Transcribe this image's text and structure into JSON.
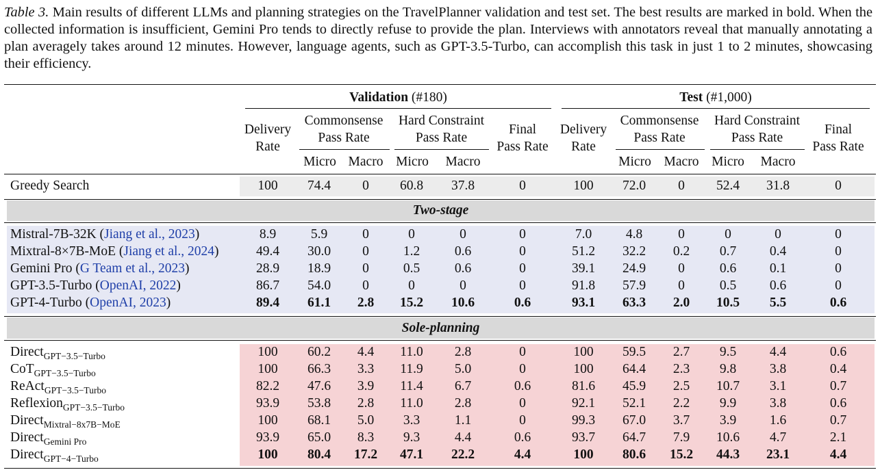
{
  "caption": {
    "label": "Table 3.",
    "text": " Main results of different LLMs and planning strategies on the TravelPlanner validation and test set. The best results are marked in bold. When the collected information is insufficient, Gemini Pro tends to directly refuse to provide the plan. Interviews with annotators reveal that manually annotating a plan averagely takes around 12 minutes. However, language agents, such as GPT-3.5-Turbo, can accomplish this task in just 1 to 2 minutes, showcasing their efficiency."
  },
  "header": {
    "validation": {
      "bold": "Validation",
      "rest": " (#180)"
    },
    "test": {
      "bold": "Test",
      "rest": " (#1,000)"
    },
    "delivery": [
      "Delivery",
      "Rate"
    ],
    "commonsense": [
      "Commonsense",
      "Pass Rate"
    ],
    "hard": [
      "Hard Constraint",
      "Pass Rate"
    ],
    "final": [
      "Final",
      "Pass Rate"
    ],
    "micro": "Micro",
    "macro": "Macro"
  },
  "colors": {
    "greedy_bg": "#ececec",
    "two_stage_bg": "#e6e8f4",
    "sole_bg": "#f6d3d5",
    "section_bg": "#d9d9d9",
    "citation": "#1f3fa8"
  },
  "sections": {
    "two_stage": "Two-stage",
    "sole_planning": "Sole-planning"
  },
  "rows": {
    "greedy": {
      "name": "Greedy Search",
      "values": [
        "100",
        "74.4",
        "0",
        "60.8",
        "37.8",
        "0",
        "100",
        "72.0",
        "0",
        "52.4",
        "31.8",
        "0"
      ]
    },
    "two_stage": [
      {
        "name": "Mistral-7B-32K (",
        "cite": "Jiang et al., 2023",
        "close": ")",
        "values": [
          "8.9",
          "5.9",
          "0",
          "0",
          "0",
          "0",
          "7.0",
          "4.8",
          "0",
          "0",
          "0",
          "0"
        ]
      },
      {
        "name": "Mixtral-8×7B-MoE (",
        "cite": "Jiang et al., 2024",
        "close": ")",
        "values": [
          "49.4",
          "30.0",
          "0",
          "1.2",
          "0.6",
          "0",
          "51.2",
          "32.2",
          "0.2",
          "0.7",
          "0.4",
          "0"
        ]
      },
      {
        "name": "Gemini Pro (",
        "cite": "G Team et al., 2023",
        "close": ")",
        "values": [
          "28.9",
          "18.9",
          "0",
          "0.5",
          "0.6",
          "0",
          "39.1",
          "24.9",
          "0",
          "0.6",
          "0.1",
          "0"
        ]
      },
      {
        "name": "GPT-3.5-Turbo (",
        "cite": "OpenAI, 2022",
        "close": ")",
        "values": [
          "86.7",
          "54.0",
          "0",
          "0",
          "0",
          "0",
          "91.8",
          "57.9",
          "0",
          "0.5",
          "0.6",
          "0"
        ]
      },
      {
        "name": "GPT-4-Turbo (",
        "cite": "OpenAI, 2023",
        "close": ")",
        "bold": true,
        "values": [
          "89.4",
          "61.1",
          "2.8",
          "15.2",
          "10.6",
          "0.6",
          "93.1",
          "63.3",
          "2.0",
          "10.5",
          "5.5",
          "0.6"
        ]
      }
    ],
    "sole": [
      {
        "name": "Direct",
        "sub": "GPT−3.5−Turbo",
        "values": [
          "100",
          "60.2",
          "4.4",
          "11.0",
          "2.8",
          "0",
          "100",
          "59.5",
          "2.7",
          "9.5",
          "4.4",
          "0.6"
        ]
      },
      {
        "name": "CoT",
        "sub": "GPT−3.5−Turbo",
        "values": [
          "100",
          "66.3",
          "3.3",
          "11.9",
          "5.0",
          "0",
          "100",
          "64.4",
          "2.3",
          "9.8",
          "3.8",
          "0.4"
        ]
      },
      {
        "name": "ReAct",
        "sub": "GPT−3.5−Turbo",
        "values": [
          "82.2",
          "47.6",
          "3.9",
          "11.4",
          "6.7",
          "0.6",
          "81.6",
          "45.9",
          "2.5",
          "10.7",
          "3.1",
          "0.7"
        ]
      },
      {
        "name": "Reflexion",
        "sub": "GPT−3.5−Turbo",
        "values": [
          "93.9",
          "53.8",
          "2.8",
          "11.0",
          "2.8",
          "0",
          "92.1",
          "52.1",
          "2.2",
          "9.9",
          "3.8",
          "0.6"
        ]
      },
      {
        "name": "Direct",
        "sub": "Mixtral−8x7B−MoE",
        "values": [
          "100",
          "68.1",
          "5.0",
          "3.3",
          "1.1",
          "0",
          "99.3",
          "67.0",
          "3.7",
          "3.9",
          "1.6",
          "0.7"
        ]
      },
      {
        "name": "Direct",
        "sub": "Gemini Pro",
        "values": [
          "93.9",
          "65.0",
          "8.3",
          "9.3",
          "4.4",
          "0.6",
          "93.7",
          "64.7",
          "7.9",
          "10.6",
          "4.7",
          "2.1"
        ]
      },
      {
        "name": "Direct",
        "sub": "GPT−4−Turbo",
        "bold": true,
        "values": [
          "100",
          "80.4",
          "17.2",
          "47.1",
          "22.2",
          "4.4",
          "100",
          "80.6",
          "15.2",
          "44.3",
          "23.1",
          "4.4"
        ]
      }
    ]
  }
}
